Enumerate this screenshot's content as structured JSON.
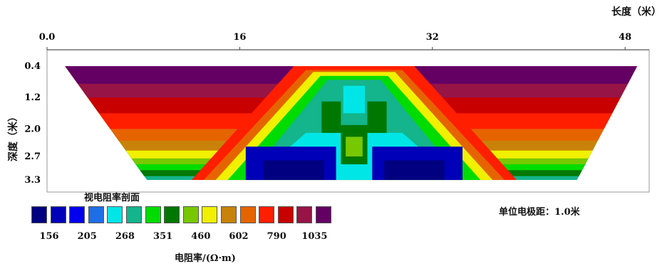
{
  "chart_data": {
    "type": "heatmap",
    "x_axis_title": "长度（米）",
    "y_axis_title": "深度（米）",
    "x_ticks": [
      "0.0",
      "16",
      "32",
      "48"
    ],
    "x_tick_values": [
      0,
      16,
      32,
      48
    ],
    "y_ticks": [
      "0.4",
      "1.2",
      "2.0",
      "2.7",
      "3.3"
    ],
    "y_tick_values": [
      0.4,
      1.2,
      2.0,
      2.7,
      3.3
    ],
    "xlim": [
      0,
      50
    ],
    "ylim": [
      3.3,
      0.4
    ],
    "legend_title": "视电阻率剖面",
    "legend_colors": [
      "#000080",
      "#0000b8",
      "#0000ee",
      "#1e6ee6",
      "#00e6e6",
      "#14b48c",
      "#00dc00",
      "#007800",
      "#78c800",
      "#f0f000",
      "#c8820a",
      "#e66400",
      "#ff1e00",
      "#c80000",
      "#961446",
      "#640064"
    ],
    "legend_values": [
      "156",
      "205",
      "268",
      "351",
      "460",
      "602",
      "790",
      "1035"
    ],
    "legend_unit": "电阻率/(Ω·m)",
    "electrode_spacing": "单位电极距：1.0米",
    "section_top_x": [
      1.5,
      49
    ],
    "section_bottom_x": [
      8.3,
      44
    ],
    "bands": [
      {
        "color": "#640064",
        "depth": 0.85
      },
      {
        "color": "#961446",
        "depth": 1.2
      },
      {
        "color": "#c80000",
        "depth": 1.6
      },
      {
        "color": "#ff1e00",
        "depth": 2.0
      },
      {
        "color": "#e66400",
        "depth": 2.3
      },
      {
        "color": "#c8820a",
        "depth": 2.55
      },
      {
        "color": "#f0f000",
        "depth": 2.75
      },
      {
        "color": "#78c800",
        "depth": 2.9
      },
      {
        "color": "#00dc00",
        "depth": 3.05
      },
      {
        "color": "#007800",
        "depth": 3.2
      },
      {
        "color": "#14b48c",
        "depth": 3.3
      }
    ],
    "anomaly": {
      "center_x": 25.5,
      "contours": [
        {
          "color": "#ff1e00",
          "top": 0.4,
          "half_width_top": 5.0,
          "half_width_bottom": 13.5,
          "bottom": 3.3
        },
        {
          "color": "#e66400",
          "top": 0.5,
          "half_width_top": 4.0,
          "half_width_bottom": 12.5,
          "bottom": 3.3
        },
        {
          "color": "#f0f000",
          "top": 0.55,
          "half_width_top": 3.4,
          "half_width_bottom": 11.5,
          "bottom": 3.3
        },
        {
          "color": "#00dc00",
          "top": 0.65,
          "half_width_top": 2.8,
          "half_width_bottom": 10.5,
          "bottom": 3.3
        },
        {
          "color": "#14b48c",
          "top": 0.75,
          "half_width_top": 2.2,
          "half_width_bottom": 9.0,
          "bottom": 3.3
        },
        {
          "color": "#00e6e6",
          "top": 2.1,
          "half_width_top": 4.0,
          "half_width_bottom": 8.5,
          "bottom": 3.3
        }
      ],
      "deep_lows": [
        {
          "color": "#0000b8",
          "x0": 16.5,
          "x1": 24.0,
          "top": 2.45,
          "bottom": 3.3
        },
        {
          "color": "#0000b8",
          "x0": 27.0,
          "x1": 34.5,
          "top": 2.45,
          "bottom": 3.3
        },
        {
          "color": "#000080",
          "x0": 18.0,
          "x1": 23.0,
          "top": 2.8,
          "bottom": 3.3
        },
        {
          "color": "#000080",
          "x0": 28.0,
          "x1": 33.0,
          "top": 2.8,
          "bottom": 3.3
        }
      ],
      "inner_patches": [
        {
          "color": "#007800",
          "x0": 22.8,
          "x1": 24.4,
          "top": 1.3,
          "bottom": 2.1
        },
        {
          "color": "#007800",
          "x0": 26.6,
          "x1": 28.2,
          "top": 1.3,
          "bottom": 2.1
        },
        {
          "color": "#007800",
          "x0": 24.4,
          "x1": 26.6,
          "top": 1.9,
          "bottom": 2.9
        },
        {
          "color": "#78c800",
          "x0": 24.8,
          "x1": 26.2,
          "top": 2.2,
          "bottom": 2.7
        },
        {
          "color": "#00e6e6",
          "x0": 24.6,
          "x1": 26.4,
          "top": 0.9,
          "bottom": 1.6
        }
      ]
    }
  }
}
